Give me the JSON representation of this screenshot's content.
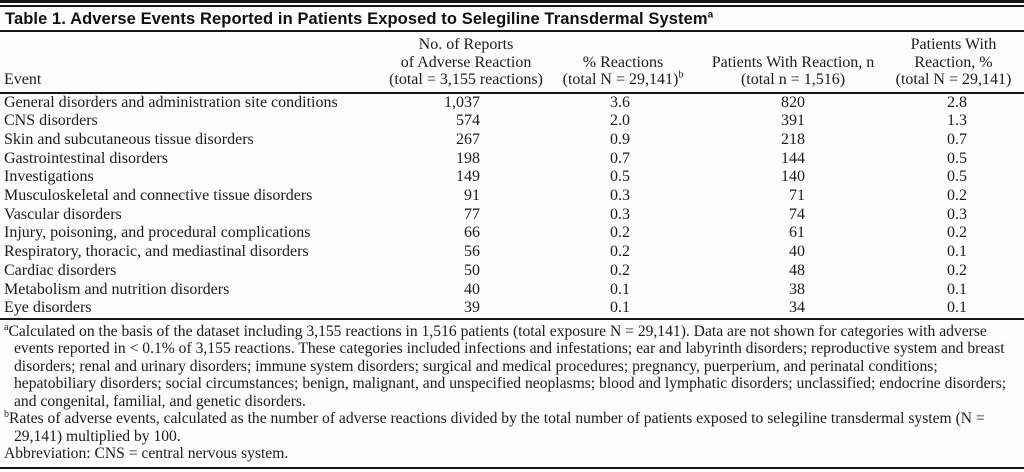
{
  "table": {
    "title": "Table 1. Adverse Events Reported in Patients Exposed to Selegiline Transdermal System",
    "title_sup": "a",
    "header": {
      "event": "Event",
      "col2_line1": "No. of Reports",
      "col2_line2": "of Adverse Reaction",
      "col2_line3": "(total = 3,155 reactions)",
      "col3_line1": "% Reactions",
      "col3_line2": "(total N = 29,141)",
      "col3_sup": "b",
      "col4_line1": "Patients With Reaction, n",
      "col4_line2": "(total n = 1,516)",
      "col5_line1": "Patients With",
      "col5_line2": "Reaction, %",
      "col5_line3": "(total N = 29,141)"
    },
    "rows": [
      {
        "event": "General disorders and administration site conditions",
        "reports": "1,037",
        "pct_reactions": "3.6",
        "patients_n": "820",
        "patients_pct": "2.8"
      },
      {
        "event": "CNS disorders",
        "reports": "574",
        "pct_reactions": "2.0",
        "patients_n": "391",
        "patients_pct": "1.3"
      },
      {
        "event": "Skin and subcutaneous tissue disorders",
        "reports": "267",
        "pct_reactions": "0.9",
        "patients_n": "218",
        "patients_pct": "0.7"
      },
      {
        "event": "Gastrointestinal disorders",
        "reports": "198",
        "pct_reactions": "0.7",
        "patients_n": "144",
        "patients_pct": "0.5"
      },
      {
        "event": "Investigations",
        "reports": "149",
        "pct_reactions": "0.5",
        "patients_n": "140",
        "patients_pct": "0.5"
      },
      {
        "event": "Musculoskeletal and connective tissue disorders",
        "reports": "91",
        "pct_reactions": "0.3",
        "patients_n": "71",
        "patients_pct": "0.2"
      },
      {
        "event": "Vascular disorders",
        "reports": "77",
        "pct_reactions": "0.3",
        "patients_n": "74",
        "patients_pct": "0.3"
      },
      {
        "event": "Injury, poisoning, and procedural complications",
        "reports": "66",
        "pct_reactions": "0.2",
        "patients_n": "61",
        "patients_pct": "0.2"
      },
      {
        "event": "Respiratory, thoracic, and mediastinal disorders",
        "reports": "56",
        "pct_reactions": "0.2",
        "patients_n": "40",
        "patients_pct": "0.1"
      },
      {
        "event": "Cardiac disorders",
        "reports": "50",
        "pct_reactions": "0.2",
        "patients_n": "48",
        "patients_pct": "0.2"
      },
      {
        "event": "Metabolism and nutrition disorders",
        "reports": "40",
        "pct_reactions": "0.1",
        "patients_n": "38",
        "patients_pct": "0.1"
      },
      {
        "event": "Eye disorders",
        "reports": "39",
        "pct_reactions": "0.1",
        "patients_n": "34",
        "patients_pct": "0.1"
      }
    ]
  },
  "footnotes": {
    "a_marker": "a",
    "a_text": "Calculated on the basis of the dataset including 3,155 reactions in 1,516 patients (total exposure N = 29,141). Data are not shown for categories with adverse events reported in < 0.1% of 3,155 reactions. These categories included infections and infestations; ear and labyrinth disorders; reproductive system and breast disorders; renal and urinary disorders; immune system disorders; surgical and medical procedures; pregnancy, puerperium, and perinatal conditions; hepatobiliary disorders; social circumstances; benign, malignant, and unspecified neoplasms; blood and lymphatic disorders; unclassified; endocrine disorders; and congenital, familial, and genetic disorders.",
    "b_marker": "b",
    "b_text": "Rates of adverse events, calculated as the number of adverse reactions divided by the total number of patients exposed to selegiline transdermal system (N = 29,141) multiplied by 100.",
    "abbreviation": "Abbreviation: CNS = central nervous system."
  }
}
